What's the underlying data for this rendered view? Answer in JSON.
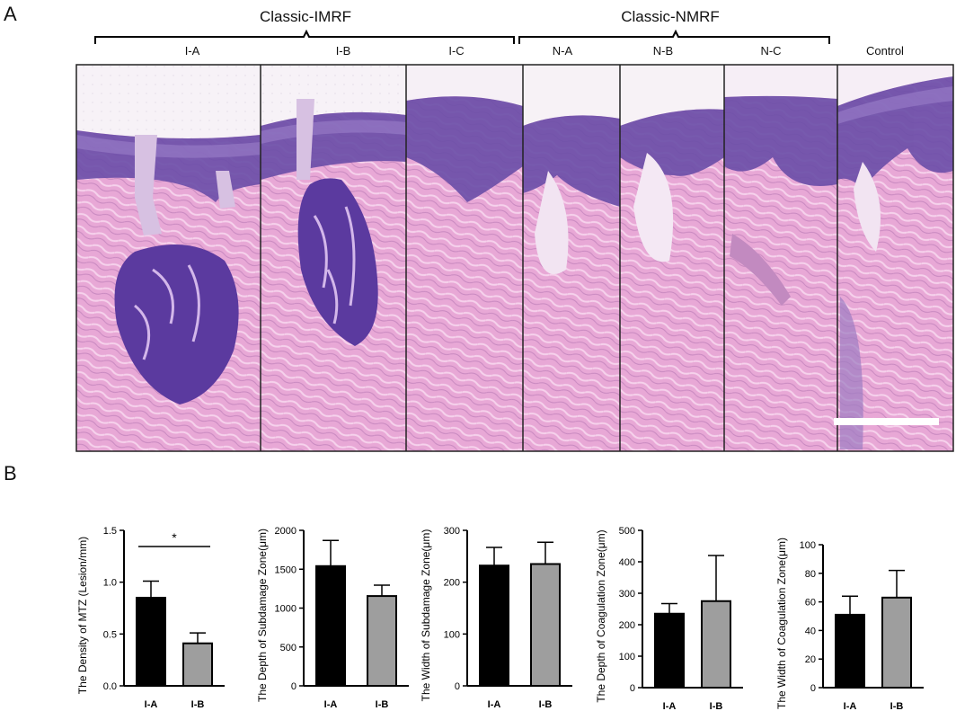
{
  "panel_a": {
    "letter": "A",
    "groups": [
      {
        "title": "Classic-IMRF",
        "samples": [
          "I-A",
          "I-B",
          "I-C"
        ]
      },
      {
        "title": "Classic-NMRF",
        "samples": [
          "N-A",
          "N-B",
          "N-C"
        ]
      }
    ],
    "control_label": "Control"
  },
  "panel_b": {
    "letter": "B"
  },
  "colors": {
    "I-A": "#000000",
    "I-B": "#9e9e9e",
    "stain_pink": "#e9a9d9",
    "stain_purple": "#5b3a9f"
  },
  "chart_data": [
    {
      "type": "bar",
      "categories": [
        "I-A",
        "I-B"
      ],
      "values": [
        0.85,
        0.41
      ],
      "errors": [
        0.16,
        0.1
      ],
      "ylabel": "The Density of MTZ (Lesion/mm)",
      "ylim": [
        0,
        1.5
      ],
      "yticks": [
        "0.0",
        "0.5",
        "1.0",
        "1.5"
      ],
      "annotation": "*"
    },
    {
      "type": "bar",
      "categories": [
        "I-A",
        "I-B"
      ],
      "values": [
        1540,
        1155
      ],
      "errors": [
        330,
        140
      ],
      "ylabel": "The Depth of Subdamage Zone(μm)",
      "ylim": [
        0,
        2000
      ],
      "yticks": [
        "0",
        "500",
        "1000",
        "1500",
        "2000"
      ]
    },
    {
      "type": "bar",
      "categories": [
        "I-A",
        "I-B"
      ],
      "values": [
        232,
        235
      ],
      "errors": [
        35,
        42
      ],
      "ylabel": "The Width of Subdamage Zone(μm)",
      "ylim": [
        0,
        300
      ],
      "yticks": [
        "0",
        "100",
        "200",
        "300"
      ]
    },
    {
      "type": "bar",
      "categories": [
        "I-A",
        "I-B"
      ],
      "values": [
        235,
        275
      ],
      "errors": [
        32,
        145
      ],
      "ylabel": "The Depth of Coagulation Zone(μm)",
      "ylim": [
        0,
        500
      ],
      "yticks": [
        "0",
        "100",
        "200",
        "300",
        "400",
        "500"
      ]
    },
    {
      "type": "bar",
      "categories": [
        "I-A",
        "I-B"
      ],
      "values": [
        51,
        63
      ],
      "errors": [
        13,
        19
      ],
      "ylabel": "The Width of Coagulation Zone(μm)",
      "ylim": [
        0,
        100
      ],
      "yticks": [
        "0",
        "20",
        "40",
        "60",
        "80",
        "100"
      ]
    }
  ]
}
